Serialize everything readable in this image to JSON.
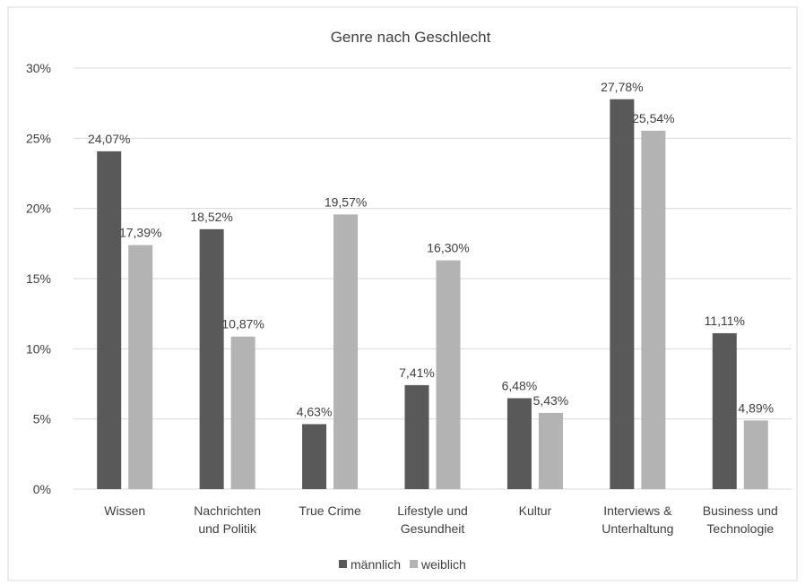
{
  "chart_data": {
    "type": "bar",
    "title": "Genre nach Geschlecht",
    "xlabel": "",
    "ylabel": "",
    "ylim": [
      0,
      30
    ],
    "yticks": [
      0,
      5,
      10,
      15,
      20,
      25,
      30
    ],
    "ytick_labels": [
      "0%",
      "5%",
      "10%",
      "15%",
      "20%",
      "25%",
      "30%"
    ],
    "grid": true,
    "legend_position": "bottom",
    "categories": [
      [
        "Wissen"
      ],
      [
        "Nachrichten",
        "und Politik"
      ],
      [
        "True Crime"
      ],
      [
        "Lifestyle und",
        "Gesundheit"
      ],
      [
        "Kultur"
      ],
      [
        "Interviews &",
        "Unterhaltung"
      ],
      [
        "Business und",
        "Technologie"
      ]
    ],
    "series": [
      {
        "name": "männlich",
        "color": "#595959",
        "values": [
          24.07,
          18.52,
          4.63,
          7.41,
          6.48,
          27.78,
          11.11
        ],
        "labels": [
          "24,07%",
          "18,52%",
          "4,63%",
          "7,41%",
          "6,48%",
          "27,78%",
          "11,11%"
        ]
      },
      {
        "name": "weiblich",
        "color": "#b3b3b3",
        "values": [
          17.39,
          10.87,
          19.57,
          16.3,
          5.43,
          25.54,
          4.89
        ],
        "labels": [
          "17,39%",
          "10,87%",
          "19,57%",
          "16,30%",
          "5,43%",
          "25,54%",
          "4,89%"
        ]
      }
    ]
  }
}
